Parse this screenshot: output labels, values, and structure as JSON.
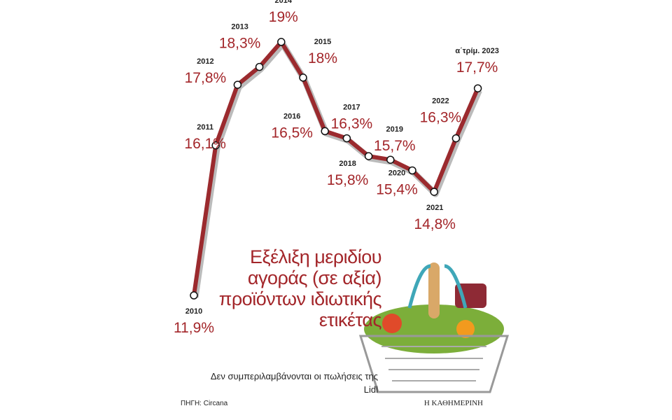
{
  "chart_data": {
    "type": "line",
    "title": "Εξέλιξη μεριδίου αγοράς (σε αξία) προϊόντων ιδιωτικής ετικέτας",
    "note": "Δεν συμπεριλαμβάνονται οι πωλήσεις της Lidl",
    "source": "ΠΗΓΗ: Circana",
    "brand": "Η ΚΑΘΗΜΕΡΙΝΗ",
    "color": "#9b2a2e",
    "categories": [
      "2010",
      "2011",
      "2012",
      "2013",
      "2014",
      "2015",
      "2016",
      "2017",
      "2018",
      "2019",
      "2020",
      "2021",
      "2022",
      "α΄τρίμ. 2023"
    ],
    "values": [
      11.9,
      16.1,
      17.8,
      18.3,
      19,
      18,
      16.5,
      16.3,
      15.8,
      15.7,
      15.4,
      14.8,
      16.3,
      17.7
    ],
    "value_labels": [
      "11,9%",
      "16,1%",
      "17,8%",
      "18,3%",
      "19%",
      "18%",
      "16,5%",
      "16,3%",
      "15,8%",
      "15,7%",
      "15,4%",
      "14,8%",
      "16,3%",
      "17,7%"
    ]
  }
}
